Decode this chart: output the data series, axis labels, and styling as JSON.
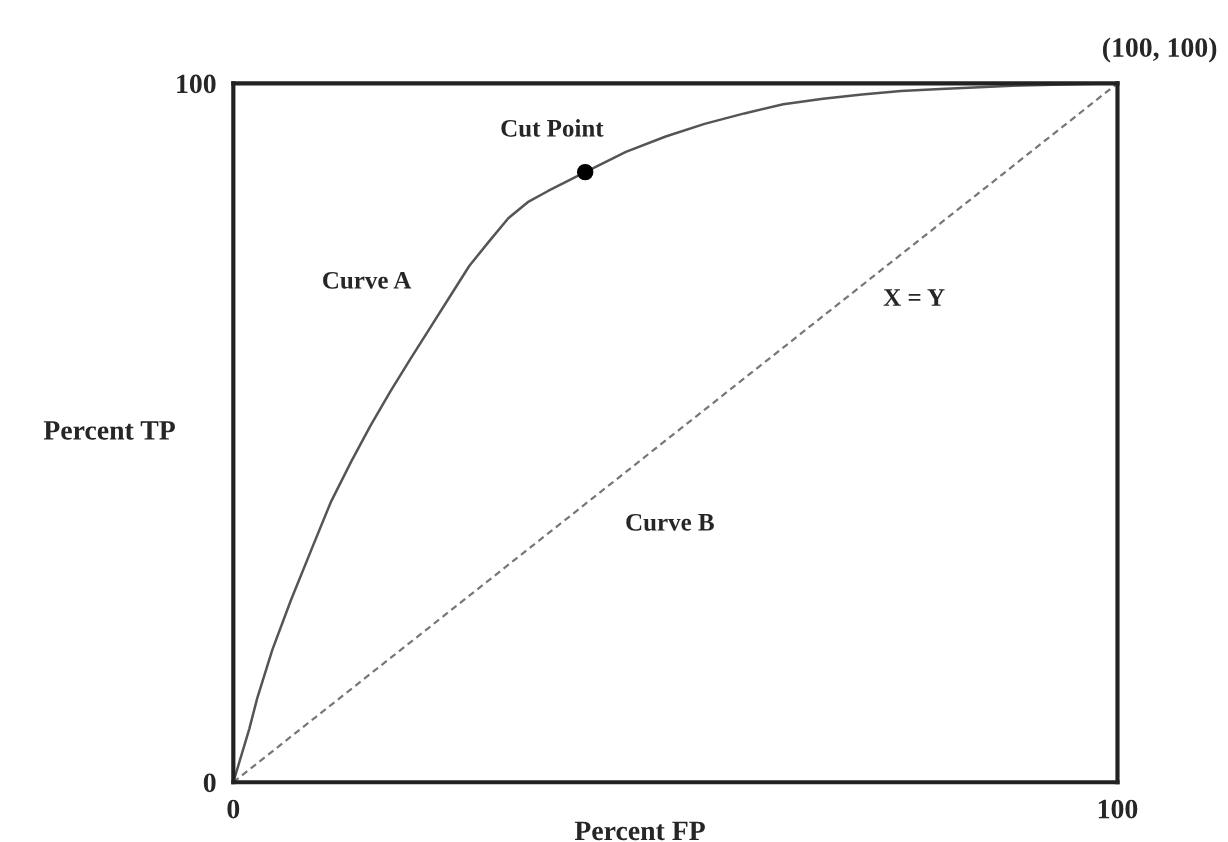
{
  "chart_data": {
    "type": "line",
    "xlabel": "Percent FP",
    "ylabel": "Percent TP",
    "xlim": [
      0,
      100
    ],
    "ylim": [
      0,
      100
    ],
    "xticks": [
      0,
      100
    ],
    "yticks": [
      0,
      100
    ],
    "series": [
      {
        "name": "Curve A",
        "color": "#555555",
        "line_style": "solid",
        "x": [
          0,
          1.8,
          2.7,
          4.4,
          6.5,
          8.9,
          11,
          13.3,
          15.5,
          17.8,
          20,
          22.2,
          24.5,
          26.7,
          29,
          31.1,
          33.3,
          35.6,
          39.8,
          44.4,
          48.9,
          53.3,
          57.8,
          62.2,
          66.7,
          71.1,
          75.5,
          80,
          89,
          100
        ],
        "values": [
          0,
          7.6,
          12,
          18.9,
          26,
          33.5,
          40,
          45.8,
          51,
          56,
          60.5,
          64.9,
          69.5,
          73.9,
          77.5,
          80.7,
          83,
          84.6,
          87.3,
          90.2,
          92.4,
          94.2,
          95.7,
          97,
          97.8,
          98.4,
          98.9,
          99.2,
          99.7,
          100
        ]
      },
      {
        "name": "Curve B",
        "color": "#777777",
        "line_style": "dashed",
        "x": [
          0,
          100
        ],
        "values": [
          0,
          100
        ]
      },
      {
        "type": "scatter",
        "color": "#000000",
        "marker": "circle",
        "x": [
          39.8
        ],
        "values": [
          87.3
        ]
      }
    ],
    "annotations": [
      {
        "text": "Cut Point",
        "x": 39.8,
        "y": 87.3
      },
      {
        "text": "X = Y",
        "x": 77,
        "y": 77
      },
      {
        "text": "(100, 100)",
        "x": 100,
        "y": 100
      }
    ]
  }
}
